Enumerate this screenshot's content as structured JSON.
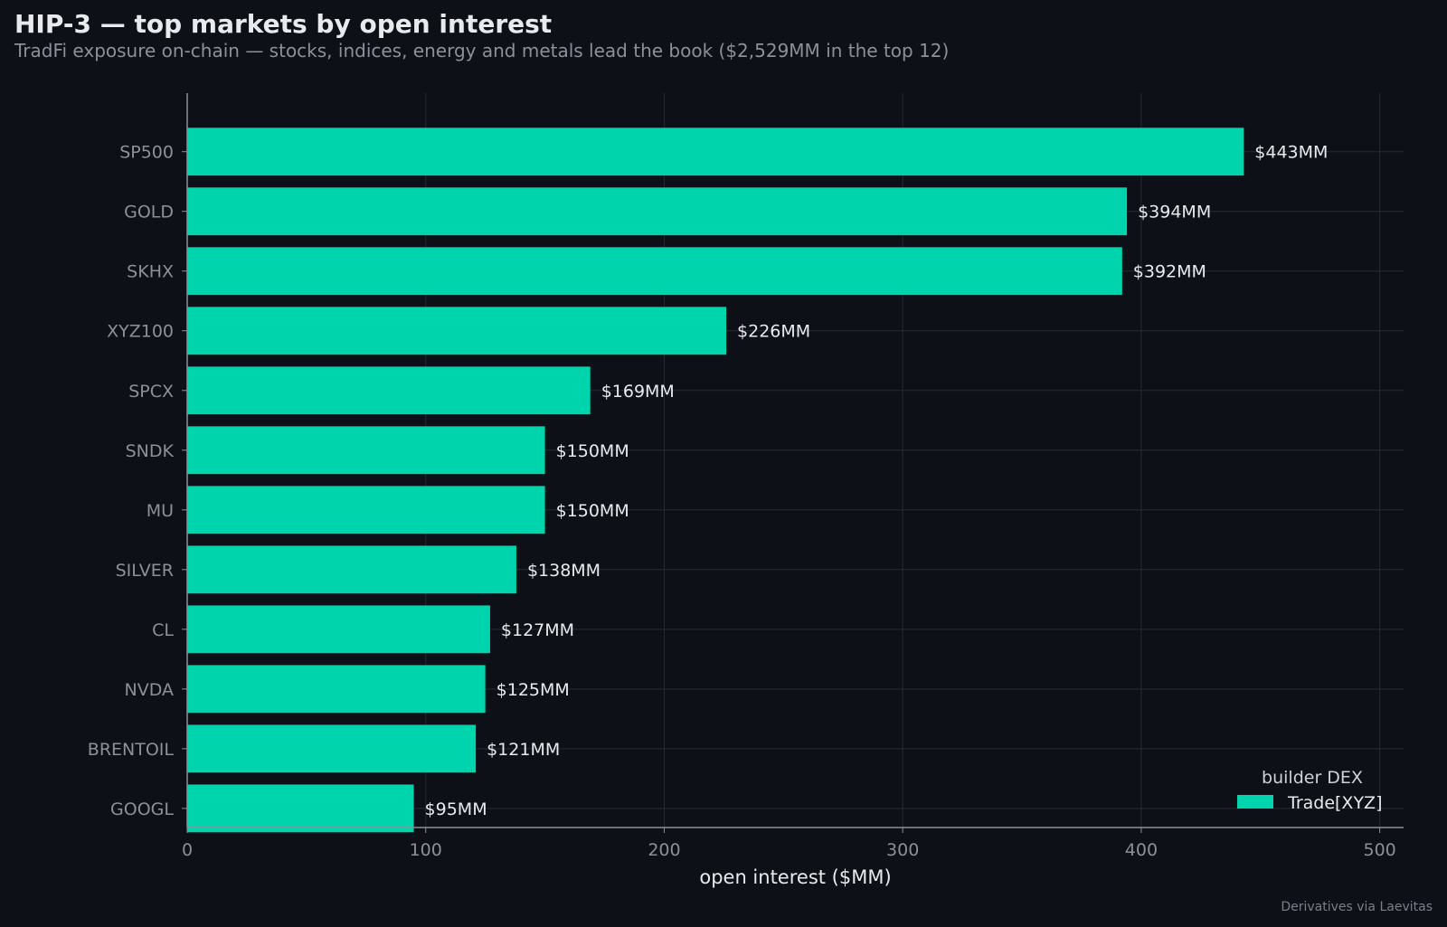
{
  "title": "HIP-3 — top markets by open interest",
  "subtitle": "TradFi exposure on-chain — stocks, indices, energy and metals lead the book ($2,529MM in the top 12)",
  "credit": "Derivatives via Laevitas",
  "colors": {
    "background": "#0d1017",
    "bar": "#00d4ac",
    "grid": "#262a33",
    "axis": "#8c9099",
    "text": "#e8eaed",
    "muted": "#8c9099"
  },
  "chart_data": {
    "type": "bar",
    "orientation": "horizontal",
    "categories": [
      "SP500",
      "GOLD",
      "SKHX",
      "XYZ100",
      "SPCX",
      "SNDK",
      "MU",
      "SILVER",
      "CL",
      "NVDA",
      "BRENTOIL",
      "GOOGL"
    ],
    "series": [
      {
        "name": "Trade[XYZ]",
        "values": [
          443,
          394,
          392,
          226,
          169,
          150,
          150,
          138,
          127,
          125,
          121,
          95
        ]
      }
    ],
    "value_labels": [
      "$443MM",
      "$394MM",
      "$392MM",
      "$226MM",
      "$169MM",
      "$150MM",
      "$150MM",
      "$138MM",
      "$127MM",
      "$125MM",
      "$121MM",
      "$95MM"
    ],
    "xlabel": "open interest ($MM)",
    "ylabel": "",
    "xlim": [
      0,
      510
    ],
    "xticks": [
      0,
      100,
      200,
      300,
      400,
      500
    ],
    "legend_title": "builder DEX",
    "legend_position": "bottom-right",
    "grid": true
  }
}
